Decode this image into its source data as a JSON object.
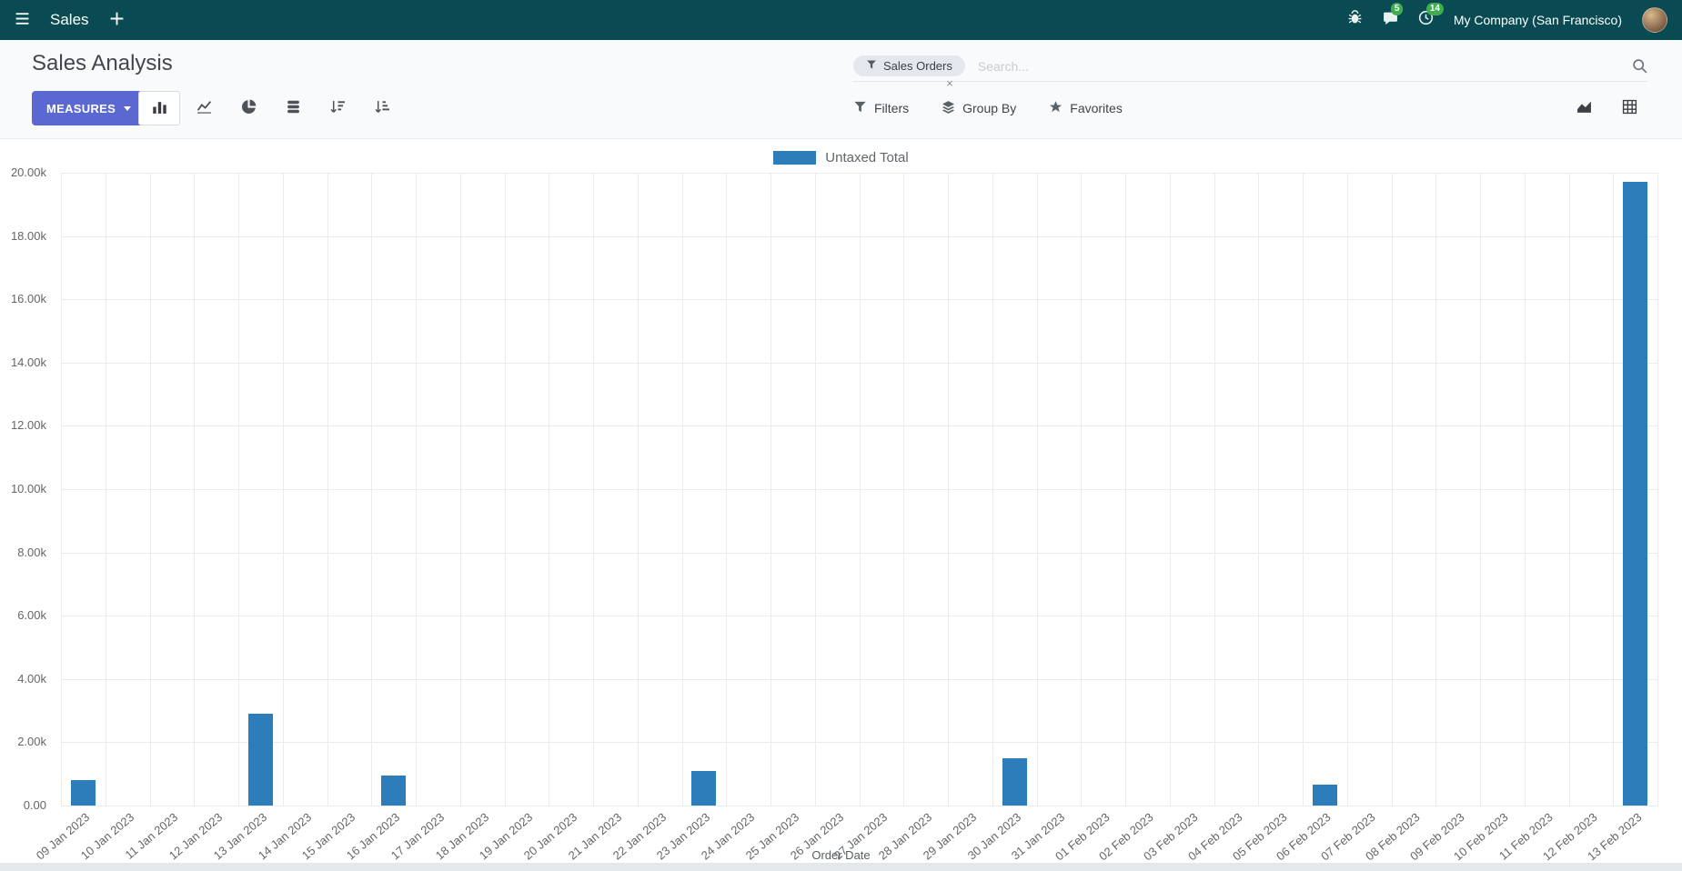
{
  "topbar": {
    "app_name": "Sales",
    "new_label": "+",
    "messages_badge": "5",
    "activities_badge": "14",
    "company_name": "My Company (San Francisco)"
  },
  "control_panel": {
    "title": "Sales Analysis",
    "measures_label": "MEASURES",
    "search": {
      "facet_label": "Sales Orders",
      "facet_remove_label": "×",
      "placeholder": "Search..."
    },
    "filters_label": "Filters",
    "group_by_label": "Group By",
    "favorites_label": "Favorites"
  },
  "chart_data": {
    "type": "bar",
    "legend": "Untaxed Total",
    "legend_position": "top",
    "xlabel": "Order Date",
    "ylabel": "",
    "bar_color": "#2d7dbb",
    "grid": true,
    "ylim": [
      0,
      20000
    ],
    "yticks": [
      0,
      2000,
      4000,
      6000,
      8000,
      10000,
      12000,
      14000,
      16000,
      18000,
      20000
    ],
    "ytick_labels": [
      "0.00",
      "2.00k",
      "4.00k",
      "6.00k",
      "8.00k",
      "10.00k",
      "12.00k",
      "14.00k",
      "16.00k",
      "18.00k",
      "20.00k"
    ],
    "categories": [
      "09 Jan 2023",
      "10 Jan 2023",
      "11 Jan 2023",
      "12 Jan 2023",
      "13 Jan 2023",
      "14 Jan 2023",
      "15 Jan 2023",
      "16 Jan 2023",
      "17 Jan 2023",
      "18 Jan 2023",
      "19 Jan 2023",
      "20 Jan 2023",
      "21 Jan 2023",
      "22 Jan 2023",
      "23 Jan 2023",
      "24 Jan 2023",
      "25 Jan 2023",
      "26 Jan 2023",
      "27 Jan 2023",
      "28 Jan 2023",
      "29 Jan 2023",
      "30 Jan 2023",
      "31 Jan 2023",
      "01 Feb 2023",
      "02 Feb 2023",
      "03 Feb 2023",
      "04 Feb 2023",
      "05 Feb 2023",
      "06 Feb 2023",
      "07 Feb 2023",
      "08 Feb 2023",
      "09 Feb 2023",
      "10 Feb 2023",
      "11 Feb 2023",
      "12 Feb 2023",
      "13 Feb 2023"
    ],
    "values": [
      800,
      0,
      0,
      0,
      2900,
      0,
      0,
      950,
      0,
      0,
      0,
      0,
      0,
      0,
      1100,
      0,
      0,
      0,
      0,
      0,
      0,
      1500,
      0,
      0,
      0,
      0,
      0,
      0,
      650,
      0,
      0,
      0,
      0,
      0,
      0,
      19700
    ]
  }
}
